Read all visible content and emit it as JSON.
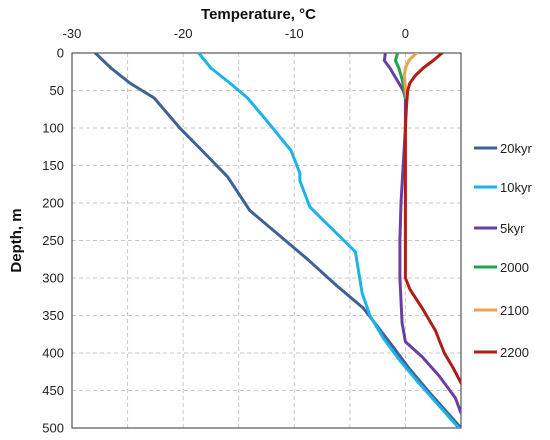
{
  "chart_data": {
    "type": "line",
    "orientation": "depth-profile",
    "xlabel": "Temperature, °C",
    "ylabel": "Depth, m",
    "xlim": [
      -30,
      5
    ],
    "ylim": [
      0,
      500
    ],
    "y_inverted": true,
    "x_axis_position": "top",
    "x_ticks": [
      -30,
      -20,
      -10,
      0
    ],
    "y_ticks": [
      0,
      50,
      100,
      150,
      200,
      250,
      300,
      350,
      400,
      450,
      500
    ],
    "grid": true,
    "legend_position": "right",
    "series": [
      {
        "name": "20kyr",
        "color": "#3f6296",
        "points": [
          [
            -27.9,
            0
          ],
          [
            -26.5,
            20
          ],
          [
            -24.8,
            40
          ],
          [
            -22.6,
            60
          ],
          [
            -20.3,
            100
          ],
          [
            -18.3,
            130
          ],
          [
            -16,
            165
          ],
          [
            -14,
            210
          ],
          [
            -11.6,
            240
          ],
          [
            -8.8,
            275
          ],
          [
            -6.2,
            310
          ],
          [
            -3.8,
            340
          ],
          [
            -1.2,
            390
          ],
          [
            0.3,
            420
          ],
          [
            2,
            450
          ],
          [
            3.8,
            480
          ],
          [
            5,
            500
          ]
        ]
      },
      {
        "name": "10kyr",
        "color": "#1eb3e8",
        "points": [
          [
            -18.6,
            0
          ],
          [
            -17.5,
            20
          ],
          [
            -15.8,
            40
          ],
          [
            -14.2,
            60
          ],
          [
            -12.5,
            90
          ],
          [
            -10.3,
            130
          ],
          [
            -9.5,
            160
          ],
          [
            -9.5,
            170
          ],
          [
            -8.6,
            205
          ],
          [
            -7.6,
            220
          ],
          [
            -4.5,
            265
          ],
          [
            -3.9,
            320
          ],
          [
            -3.2,
            350
          ],
          [
            -2,
            380
          ],
          [
            -0.5,
            410
          ],
          [
            1.2,
            440
          ],
          [
            3,
            470
          ],
          [
            4.8,
            500
          ]
        ]
      },
      {
        "name": "5kyr",
        "color": "#6b3ea1",
        "points": [
          [
            -1.8,
            0
          ],
          [
            -1.9,
            10
          ],
          [
            -1.4,
            20
          ],
          [
            -1,
            30
          ],
          [
            -0.6,
            40
          ],
          [
            -0.2,
            50
          ],
          [
            0,
            60
          ],
          [
            0,
            100
          ],
          [
            -0.2,
            150
          ],
          [
            -0.4,
            200
          ],
          [
            -0.5,
            250
          ],
          [
            -0.5,
            300
          ],
          [
            -0.3,
            360
          ],
          [
            0,
            385
          ],
          [
            1.5,
            405
          ],
          [
            3,
            430
          ],
          [
            4.5,
            460
          ],
          [
            5,
            480
          ]
        ]
      },
      {
        "name": "2000",
        "color": "#23a34a",
        "points": [
          [
            -0.7,
            0
          ],
          [
            -0.9,
            10
          ],
          [
            -0.6,
            20
          ],
          [
            -0.3,
            35
          ],
          [
            -0.1,
            50
          ],
          [
            0,
            60
          ]
        ]
      },
      {
        "name": "2100",
        "color": "#f0a050",
        "points": [
          [
            1,
            0
          ],
          [
            0.3,
            10
          ],
          [
            0,
            20
          ],
          [
            -0.1,
            30
          ],
          [
            0,
            45
          ],
          [
            0.1,
            60
          ]
        ]
      },
      {
        "name": "2200",
        "color": "#b01c16",
        "points": [
          [
            3.3,
            0
          ],
          [
            2.5,
            10
          ],
          [
            1.6,
            20
          ],
          [
            0.9,
            30
          ],
          [
            0.4,
            40
          ],
          [
            0.2,
            50
          ],
          [
            0.1,
            70
          ],
          [
            0,
            100
          ],
          [
            0,
            200
          ],
          [
            0,
            300
          ],
          [
            0.4,
            315
          ],
          [
            1.5,
            340
          ],
          [
            2.7,
            370
          ],
          [
            3.5,
            400
          ],
          [
            4.3,
            420
          ],
          [
            5,
            440
          ]
        ]
      }
    ]
  }
}
